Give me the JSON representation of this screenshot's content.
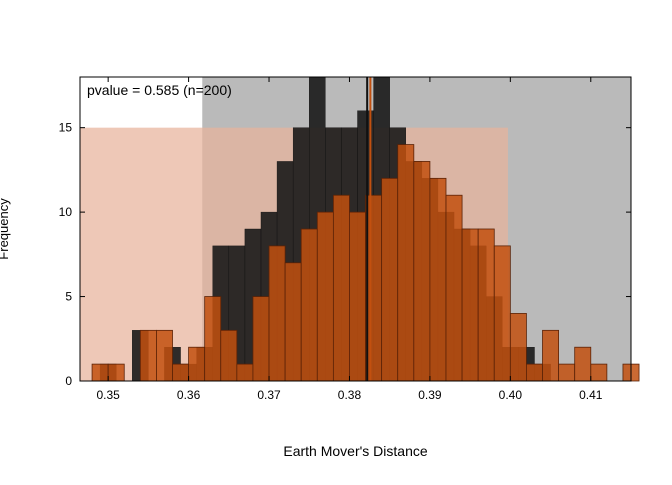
{
  "chart_data": {
    "type": "bar",
    "annotation": "pvalue = 0.585 (n=200)",
    "xlabel": "Earth Mover's Distance",
    "ylabel": "Frequency",
    "xlim": [
      0.3465,
      0.415
    ],
    "ylim": [
      0,
      18
    ],
    "xticks": [
      "0.35",
      "0.36",
      "0.37",
      "0.38",
      "0.39",
      "0.40",
      "0.41"
    ],
    "yticks": [
      "0",
      "5",
      "10",
      "15"
    ],
    "bin_width": 0.002,
    "series": [
      {
        "role": "background",
        "color": "#1a1a1a",
        "bins": [
          {
            "x0": 0.349,
            "value": 1
          },
          {
            "x0": 0.353,
            "value": 3
          },
          {
            "x0": 0.357,
            "value": 2
          },
          {
            "x0": 0.359,
            "value": 1
          },
          {
            "x0": 0.361,
            "value": 2
          },
          {
            "x0": 0.363,
            "value": 8
          },
          {
            "x0": 0.365,
            "value": 8
          },
          {
            "x0": 0.367,
            "value": 9
          },
          {
            "x0": 0.369,
            "value": 10
          },
          {
            "x0": 0.371,
            "value": 13
          },
          {
            "x0": 0.373,
            "value": 15
          },
          {
            "x0": 0.375,
            "value": 18
          },
          {
            "x0": 0.377,
            "value": 15
          },
          {
            "x0": 0.379,
            "value": 15
          },
          {
            "x0": 0.381,
            "value": 16
          },
          {
            "x0": 0.383,
            "value": 18
          },
          {
            "x0": 0.385,
            "value": 15
          },
          {
            "x0": 0.387,
            "value": 13
          },
          {
            "x0": 0.389,
            "value": 12
          },
          {
            "x0": 0.391,
            "value": 10
          },
          {
            "x0": 0.393,
            "value": 9
          },
          {
            "x0": 0.395,
            "value": 8
          },
          {
            "x0": 0.397,
            "value": 5
          },
          {
            "x0": 0.399,
            "value": 2
          },
          {
            "x0": 0.401,
            "value": 2
          },
          {
            "x0": 0.403,
            "value": 1
          }
        ]
      },
      {
        "role": "foreground",
        "color": "#c2500f",
        "bins": [
          {
            "x0": 0.348,
            "value": 1
          },
          {
            "x0": 0.35,
            "value": 1
          },
          {
            "x0": 0.354,
            "value": 3
          },
          {
            "x0": 0.356,
            "value": 3
          },
          {
            "x0": 0.358,
            "value": 1
          },
          {
            "x0": 0.36,
            "value": 2
          },
          {
            "x0": 0.362,
            "value": 5
          },
          {
            "x0": 0.364,
            "value": 3
          },
          {
            "x0": 0.366,
            "value": 1
          },
          {
            "x0": 0.368,
            "value": 5
          },
          {
            "x0": 0.37,
            "value": 8
          },
          {
            "x0": 0.372,
            "value": 7
          },
          {
            "x0": 0.374,
            "value": 9
          },
          {
            "x0": 0.376,
            "value": 10
          },
          {
            "x0": 0.378,
            "value": 11
          },
          {
            "x0": 0.38,
            "value": 10
          },
          {
            "x0": 0.382,
            "value": 11
          },
          {
            "x0": 0.384,
            "value": 12
          },
          {
            "x0": 0.386,
            "value": 14
          },
          {
            "x0": 0.388,
            "value": 13
          },
          {
            "x0": 0.39,
            "value": 12
          },
          {
            "x0": 0.392,
            "value": 11
          },
          {
            "x0": 0.394,
            "value": 9
          },
          {
            "x0": 0.396,
            "value": 9
          },
          {
            "x0": 0.398,
            "value": 8
          },
          {
            "x0": 0.4,
            "value": 4
          },
          {
            "x0": 0.402,
            "value": 1
          },
          {
            "x0": 0.404,
            "value": 3
          },
          {
            "x0": 0.406,
            "value": 1
          },
          {
            "x0": 0.408,
            "value": 2
          },
          {
            "x0": 0.41,
            "value": 1
          },
          {
            "x0": 0.412,
            "value": 0
          },
          {
            "x0": 0.414,
            "value": 1
          }
        ]
      }
    ],
    "shaded_ranges": [
      {
        "x0": 0.3617,
        "x1": 0.415,
        "color": "#bababa",
        "ytop": 18
      },
      {
        "x0": 0.3465,
        "x1": 0.3997,
        "color": "#e8b39b",
        "ytop": 15
      }
    ],
    "vertical_lines": [
      {
        "x": 0.3822,
        "color": "#111111"
      },
      {
        "x": 0.3826,
        "color": "#c2500f"
      }
    ]
  }
}
